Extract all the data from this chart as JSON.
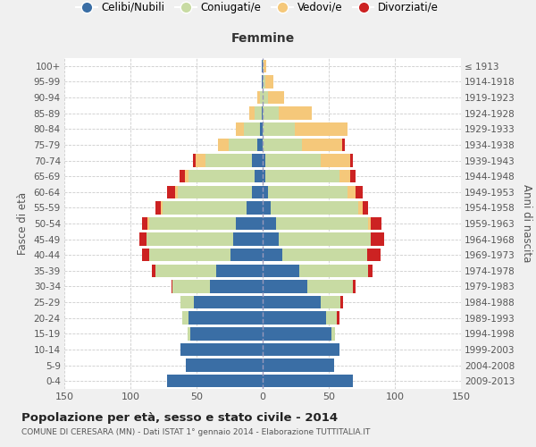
{
  "age_groups": [
    "100+",
    "95-99",
    "90-94",
    "85-89",
    "80-84",
    "75-79",
    "70-74",
    "65-69",
    "60-64",
    "55-59",
    "50-54",
    "45-49",
    "40-44",
    "35-39",
    "30-34",
    "25-29",
    "20-24",
    "15-19",
    "10-14",
    "5-9",
    "0-4"
  ],
  "birth_years": [
    "≤ 1913",
    "1914-1918",
    "1919-1923",
    "1924-1928",
    "1929-1933",
    "1934-1938",
    "1939-1943",
    "1944-1948",
    "1949-1953",
    "1954-1958",
    "1959-1963",
    "1964-1968",
    "1969-1973",
    "1974-1978",
    "1979-1983",
    "1984-1988",
    "1989-1993",
    "1994-1998",
    "1999-2003",
    "2004-2008",
    "2009-2013"
  ],
  "colors": {
    "celibi": "#3a6ea5",
    "coniugati": "#c8dba3",
    "vedovi": "#f5c87a",
    "divorziati": "#cc2222"
  },
  "males": {
    "celibi": [
      1,
      1,
      0,
      1,
      2,
      4,
      8,
      6,
      8,
      12,
      20,
      22,
      24,
      35,
      40,
      52,
      56,
      55,
      62,
      58,
      72
    ],
    "coniugati": [
      0,
      0,
      2,
      5,
      12,
      22,
      35,
      50,
      56,
      64,
      66,
      66,
      62,
      46,
      28,
      10,
      5,
      2,
      0,
      0,
      0
    ],
    "vedovi": [
      0,
      0,
      2,
      4,
      6,
      8,
      8,
      3,
      2,
      1,
      1,
      0,
      0,
      0,
      0,
      0,
      0,
      0,
      0,
      0,
      0
    ],
    "divorziati": [
      0,
      0,
      0,
      0,
      0,
      0,
      2,
      4,
      6,
      4,
      4,
      5,
      5,
      3,
      1,
      0,
      0,
      0,
      0,
      0,
      0
    ]
  },
  "females": {
    "celibi": [
      0,
      0,
      0,
      0,
      0,
      0,
      2,
      2,
      4,
      6,
      10,
      12,
      15,
      28,
      34,
      44,
      48,
      52,
      58,
      54,
      68
    ],
    "coniugati": [
      1,
      2,
      4,
      12,
      24,
      30,
      42,
      56,
      60,
      66,
      70,
      70,
      64,
      52,
      34,
      15,
      8,
      3,
      0,
      0,
      0
    ],
    "vedovi": [
      2,
      6,
      12,
      25,
      40,
      30,
      22,
      8,
      6,
      4,
      2,
      0,
      0,
      0,
      0,
      0,
      0,
      0,
      0,
      0,
      0
    ],
    "divorziati": [
      0,
      0,
      0,
      0,
      0,
      2,
      2,
      4,
      6,
      4,
      8,
      10,
      10,
      3,
      2,
      2,
      2,
      0,
      0,
      0,
      0
    ]
  },
  "title": "Popolazione per età, sesso e stato civile - 2014",
  "subtitle": "COMUNE DI CERESARA (MN) - Dati ISTAT 1° gennaio 2014 - Elaborazione TUTTITALIA.IT",
  "xlabel_right": "Femmine",
  "ylabel_left": "Fasce di età",
  "ylabel_right": "Anni di nascita",
  "xlim": 150,
  "legend_labels": [
    "Celibi/Nubili",
    "Coniugati/e",
    "Vedovi/e",
    "Divorziati/e"
  ],
  "background_color": "#f0f0f0",
  "plot_bg": "#ffffff",
  "grid_color": "#cccccc"
}
